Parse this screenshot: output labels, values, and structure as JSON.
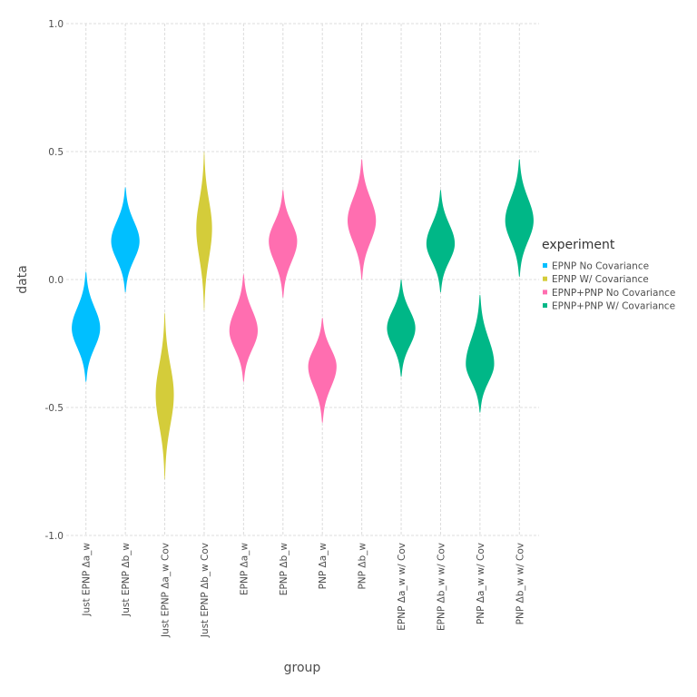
{
  "chart_data": {
    "type": "violin",
    "xlabel": "group",
    "ylabel": "data",
    "ylim": [
      -1.0,
      1.0
    ],
    "y_ticks": [
      {
        "value": -1.0,
        "label": "-1.0"
      },
      {
        "value": -0.5,
        "label": "-0.5"
      },
      {
        "value": 0.0,
        "label": "0.0"
      },
      {
        "value": 0.5,
        "label": "0.5"
      },
      {
        "value": 1.0,
        "label": "1.0"
      }
    ],
    "grid": true,
    "legend": {
      "title": "experiment",
      "position": "right",
      "entries": [
        {
          "label": "EPNP No Covariance",
          "color": "#00bfff"
        },
        {
          "label": "EPNP W/ Covariance",
          "color": "#d4cc3a"
        },
        {
          "label": "EPNP+PNP No Covariance",
          "color": "#ff6eb0"
        },
        {
          "label": "EPNP+PNP W/ Covariance",
          "color": "#00b787"
        }
      ]
    },
    "categories": [
      "Just EPNP Δa_w",
      "Just EPNP Δb_w",
      "Just EPNP Δa_w Cov",
      "Just EPNP Δb_w Cov",
      "EPNP Δa_w",
      "EPNP Δb_w",
      "PNP Δa_w",
      "PNP Δb_w",
      "EPNP Δa_w w/ Cov",
      "EPNP Δb_w w/ Cov",
      "PNP Δa_w w/ Cov",
      "PNP Δb_w w/ Cov"
    ],
    "violins": [
      {
        "category": "Just EPNP Δa_w",
        "experiment": 0,
        "center": -0.19,
        "min": -0.4,
        "max": 0.03,
        "width": 0.72
      },
      {
        "category": "Just EPNP Δb_w",
        "experiment": 0,
        "center": 0.15,
        "min": -0.05,
        "max": 0.36,
        "width": 0.72
      },
      {
        "category": "Just EPNP Δa_w Cov",
        "experiment": 1,
        "center": -0.45,
        "min": -0.78,
        "max": -0.13,
        "width": 0.46
      },
      {
        "category": "Just EPNP Δb_w Cov",
        "experiment": 1,
        "center": 0.2,
        "min": -0.12,
        "max": 0.5,
        "width": 0.4
      },
      {
        "category": "EPNP Δa_w",
        "experiment": 2,
        "center": -0.2,
        "min": -0.4,
        "max": 0.02,
        "width": 0.72
      },
      {
        "category": "EPNP Δb_w",
        "experiment": 2,
        "center": 0.15,
        "min": -0.07,
        "max": 0.35,
        "width": 0.72
      },
      {
        "category": "PNP Δa_w",
        "experiment": 2,
        "center": -0.34,
        "min": -0.56,
        "max": -0.15,
        "width": 0.72
      },
      {
        "category": "PNP Δb_w",
        "experiment": 2,
        "center": 0.23,
        "min": 0.0,
        "max": 0.47,
        "width": 0.72
      },
      {
        "category": "EPNP Δa_w w/ Cov",
        "experiment": 3,
        "center": -0.19,
        "min": -0.38,
        "max": 0.0,
        "width": 0.72
      },
      {
        "category": "EPNP Δb_w w/ Cov",
        "experiment": 3,
        "center": 0.14,
        "min": -0.05,
        "max": 0.35,
        "width": 0.72
      },
      {
        "category": "PNP Δa_w w/ Cov",
        "experiment": 3,
        "center": -0.33,
        "min": -0.52,
        "max": -0.06,
        "width": 0.72
      },
      {
        "category": "PNP Δb_w w/ Cov",
        "experiment": 3,
        "center": 0.23,
        "min": 0.01,
        "max": 0.47,
        "width": 0.72
      }
    ]
  }
}
